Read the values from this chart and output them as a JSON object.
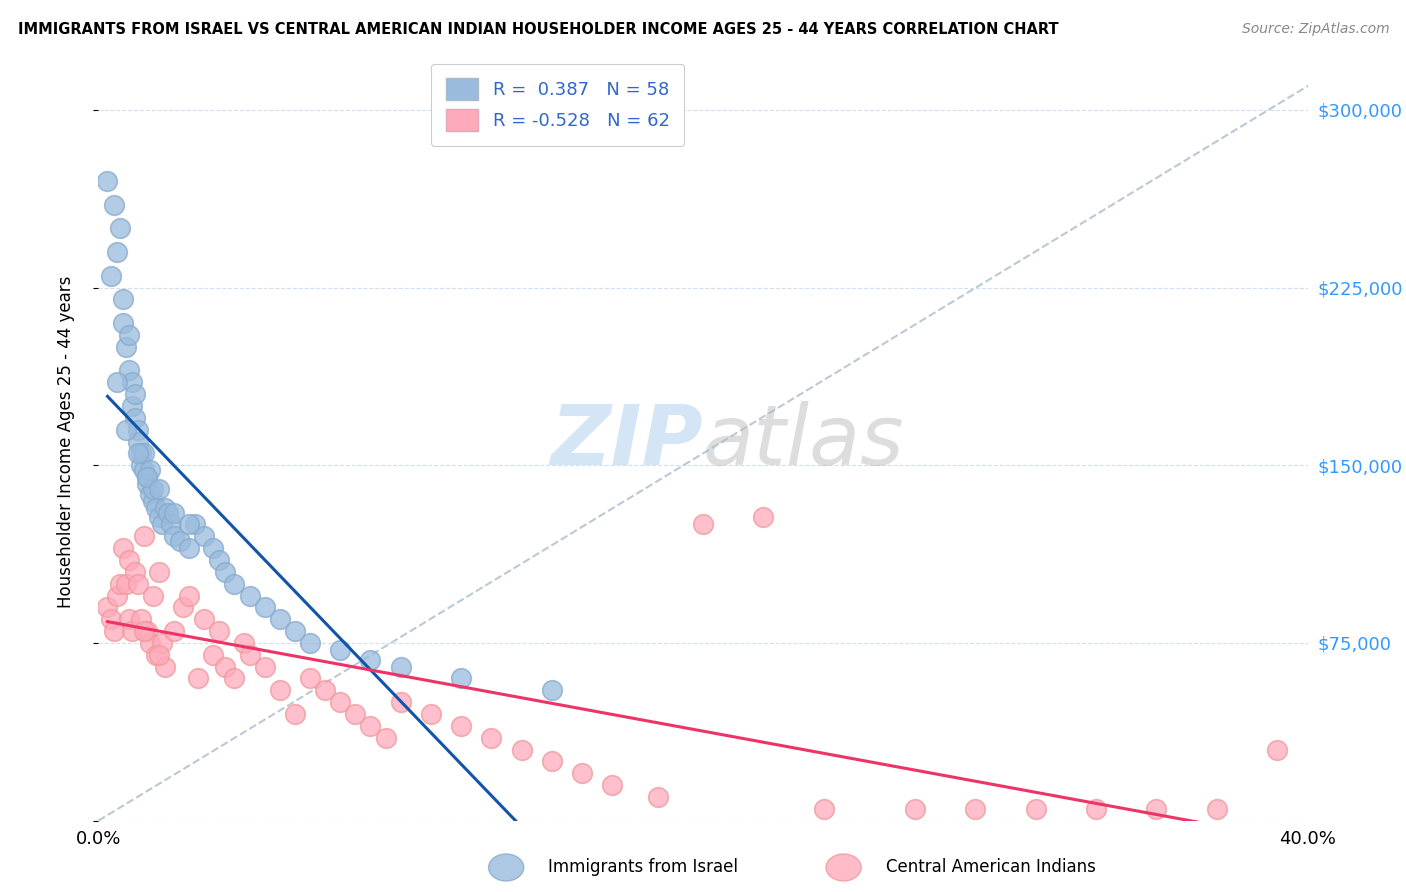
{
  "title": "IMMIGRANTS FROM ISRAEL VS CENTRAL AMERICAN INDIAN HOUSEHOLDER INCOME AGES 25 - 44 YEARS CORRELATION CHART",
  "source": "Source: ZipAtlas.com",
  "ylabel": "Householder Income Ages 25 - 44 years",
  "xlim": [
    0.0,
    0.4
  ],
  "ylim": [
    0,
    320000
  ],
  "xticks": [
    0.0,
    0.05,
    0.1,
    0.15,
    0.2,
    0.25,
    0.3,
    0.35,
    0.4
  ],
  "xtick_labels": [
    "0.0%",
    "",
    "",
    "",
    "",
    "",
    "",
    "",
    "40.0%"
  ],
  "yticks": [
    0,
    75000,
    150000,
    225000,
    300000
  ],
  "ytick_labels": [
    "",
    "$75,000",
    "$150,000",
    "$225,000",
    "$300,000"
  ],
  "blue_color": "#99BBDD",
  "blue_edge_color": "#88AACC",
  "pink_color": "#FFAABB",
  "pink_edge_color": "#EE9999",
  "blue_line_color": "#1155AA",
  "pink_line_color": "#EE3366",
  "diag_color": "#AABBCC",
  "watermark_color": "#AACCEE",
  "legend_blue_color": "#99BBDD",
  "legend_pink_color": "#FFAABB",
  "legend_text_color": "#3366CC",
  "right_axis_color": "#3399FF",
  "blue_scatter_x": [
    0.003,
    0.005,
    0.006,
    0.007,
    0.008,
    0.008,
    0.009,
    0.01,
    0.01,
    0.011,
    0.011,
    0.012,
    0.012,
    0.013,
    0.013,
    0.014,
    0.014,
    0.015,
    0.015,
    0.016,
    0.016,
    0.017,
    0.017,
    0.018,
    0.018,
    0.019,
    0.02,
    0.021,
    0.022,
    0.023,
    0.024,
    0.025,
    0.027,
    0.03,
    0.032,
    0.035,
    0.038,
    0.04,
    0.042,
    0.045,
    0.05,
    0.055,
    0.06,
    0.065,
    0.07,
    0.08,
    0.09,
    0.1,
    0.12,
    0.15,
    0.004,
    0.006,
    0.009,
    0.013,
    0.016,
    0.02,
    0.025,
    0.03
  ],
  "blue_scatter_y": [
    270000,
    260000,
    240000,
    250000,
    220000,
    210000,
    200000,
    190000,
    205000,
    185000,
    175000,
    180000,
    170000,
    165000,
    160000,
    155000,
    150000,
    148000,
    155000,
    145000,
    142000,
    148000,
    138000,
    135000,
    140000,
    132000,
    128000,
    125000,
    132000,
    130000,
    125000,
    120000,
    118000,
    115000,
    125000,
    120000,
    115000,
    110000,
    105000,
    100000,
    95000,
    90000,
    85000,
    80000,
    75000,
    72000,
    68000,
    65000,
    60000,
    55000,
    230000,
    185000,
    165000,
    155000,
    145000,
    140000,
    130000,
    125000
  ],
  "pink_scatter_x": [
    0.003,
    0.004,
    0.005,
    0.006,
    0.007,
    0.008,
    0.009,
    0.01,
    0.01,
    0.011,
    0.012,
    0.013,
    0.014,
    0.015,
    0.016,
    0.017,
    0.018,
    0.019,
    0.02,
    0.021,
    0.022,
    0.025,
    0.028,
    0.03,
    0.033,
    0.035,
    0.038,
    0.04,
    0.042,
    0.045,
    0.048,
    0.05,
    0.055,
    0.06,
    0.065,
    0.07,
    0.075,
    0.08,
    0.085,
    0.09,
    0.095,
    0.1,
    0.11,
    0.12,
    0.13,
    0.14,
    0.15,
    0.16,
    0.17,
    0.185,
    0.2,
    0.22,
    0.24,
    0.27,
    0.29,
    0.31,
    0.33,
    0.35,
    0.37,
    0.39,
    0.015,
    0.02
  ],
  "pink_scatter_y": [
    90000,
    85000,
    80000,
    95000,
    100000,
    115000,
    100000,
    85000,
    110000,
    80000,
    105000,
    100000,
    85000,
    120000,
    80000,
    75000,
    95000,
    70000,
    105000,
    75000,
    65000,
    80000,
    90000,
    95000,
    60000,
    85000,
    70000,
    80000,
    65000,
    60000,
    75000,
    70000,
    65000,
    55000,
    45000,
    60000,
    55000,
    50000,
    45000,
    40000,
    35000,
    50000,
    45000,
    40000,
    35000,
    30000,
    25000,
    20000,
    15000,
    10000,
    125000,
    128000,
    5000,
    5000,
    5000,
    5000,
    5000,
    5000,
    5000,
    30000,
    80000,
    70000
  ]
}
